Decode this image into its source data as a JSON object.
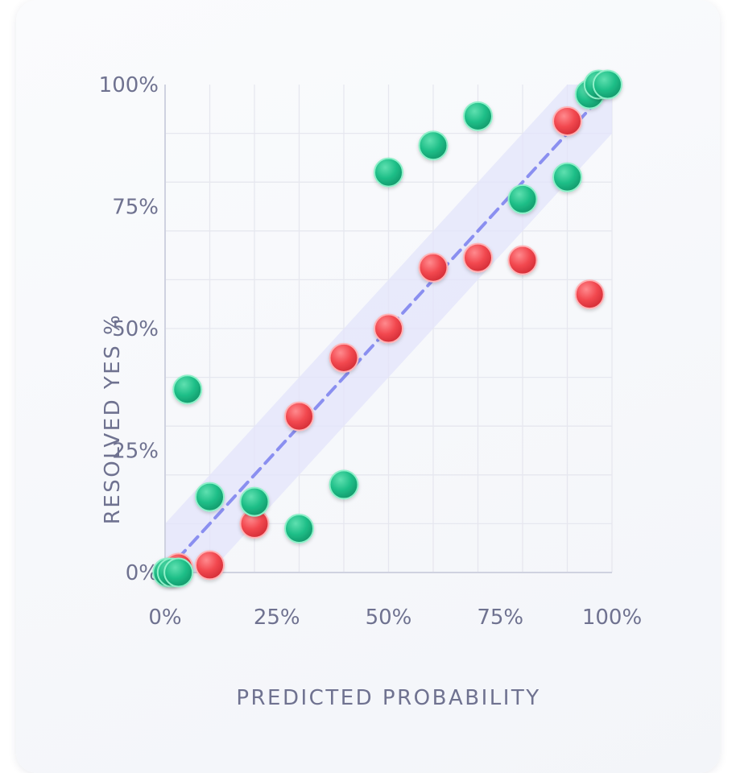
{
  "colors": {
    "yes": "#1fbf88",
    "no": "#f2484f",
    "diagonal": "#8a8ff0",
    "band": "#e3e4fb",
    "grid": "#e6e7ef",
    "axis": "#cfd2e0"
  },
  "chart_data": {
    "type": "scatter",
    "xlabel": "PREDICTED PROBABILITY",
    "ylabel": "RESOLVED YES %",
    "xlim": [
      0,
      100
    ],
    "ylim": [
      0,
      100
    ],
    "x_ticks": [
      "0%",
      "25%",
      "50%",
      "75%",
      "100%"
    ],
    "y_ticks": [
      "0%",
      "25%",
      "50%",
      "75%",
      "100%"
    ],
    "grid": true,
    "reference_line": "y = x (dashed)",
    "reference_band_halfwidth": 10,
    "series": [
      {
        "color": "#f2484f",
        "points": [
          [
            3,
            1
          ],
          [
            10,
            1.5
          ],
          [
            20,
            10
          ],
          [
            30,
            32
          ],
          [
            40,
            44
          ],
          [
            50,
            50
          ],
          [
            60,
            62.5
          ],
          [
            70,
            64.5
          ],
          [
            80,
            64
          ],
          [
            90,
            92.5
          ],
          [
            95,
            57
          ]
        ]
      },
      {
        "color": "#1fbf88",
        "points": [
          [
            0.5,
            0
          ],
          [
            1.5,
            0
          ],
          [
            3,
            0
          ],
          [
            5,
            37.5
          ],
          [
            10,
            15.5
          ],
          [
            20,
            14.5
          ],
          [
            30,
            9
          ],
          [
            40,
            18
          ],
          [
            50,
            82
          ],
          [
            60,
            87.5
          ],
          [
            70,
            93.5
          ],
          [
            80,
            76.5
          ],
          [
            90,
            81
          ],
          [
            95,
            98
          ],
          [
            97,
            100
          ],
          [
            99,
            100
          ]
        ]
      }
    ]
  }
}
